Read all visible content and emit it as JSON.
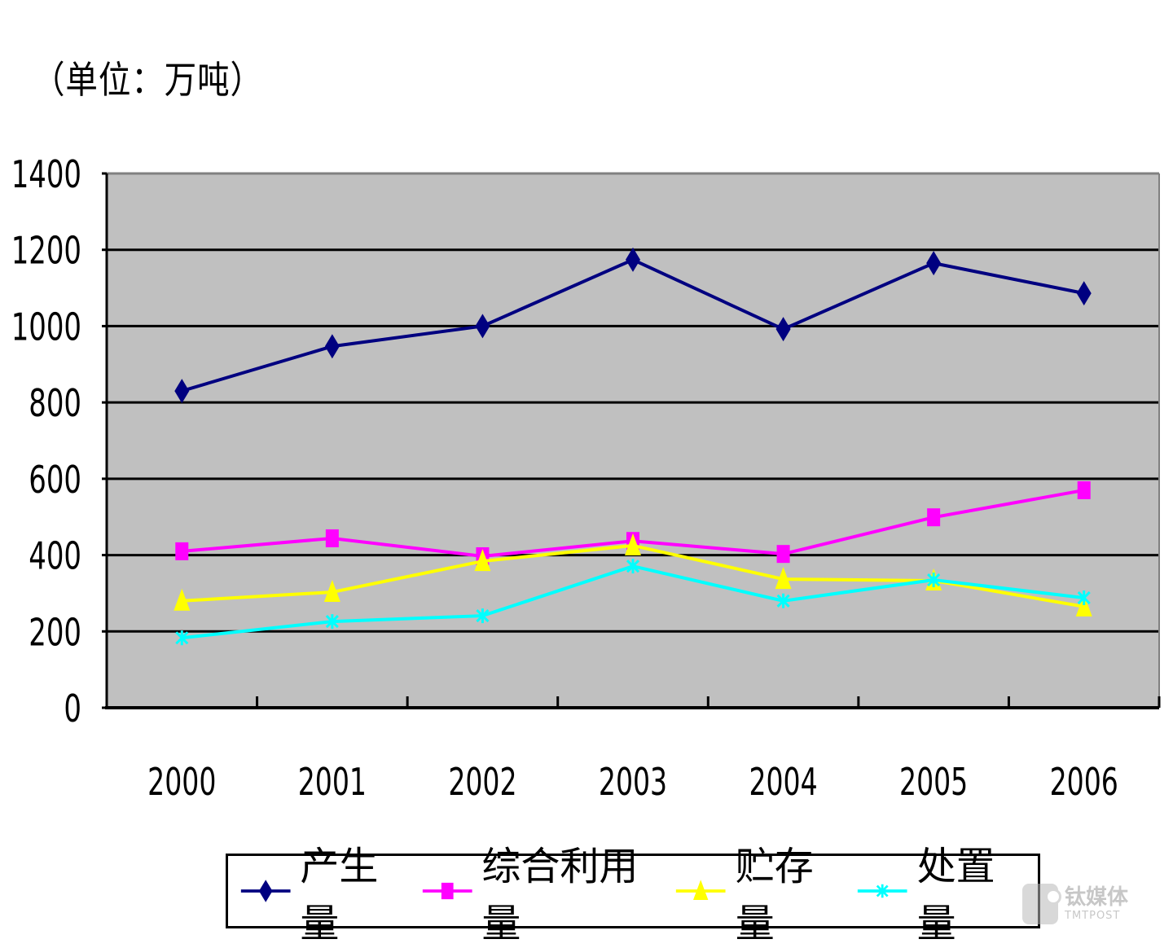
{
  "unit_label": "（单位：万吨）",
  "chart_data": {
    "type": "line",
    "title": "",
    "unit": "万吨",
    "xlabel": "",
    "ylabel": "（单位：万吨）",
    "categories": [
      "2000",
      "2001",
      "2002",
      "2003",
      "2004",
      "2005",
      "2006"
    ],
    "ylim": [
      0,
      1400
    ],
    "yticks": [
      0,
      200,
      400,
      600,
      800,
      1000,
      1200,
      1400
    ],
    "grid": true,
    "legend_position": "bottom",
    "plot_background": "#c0c0c0",
    "series": [
      {
        "name": "产生量",
        "color": "#000080",
        "marker": "diamond",
        "values": [
          830,
          947,
          1000,
          1174,
          992,
          1165,
          1086
        ]
      },
      {
        "name": "综合利用量",
        "color": "#ff00ff",
        "marker": "square",
        "values": [
          410,
          444,
          397,
          437,
          403,
          499,
          570
        ]
      },
      {
        "name": "贮存量",
        "color": "#ffff00",
        "marker": "triangle",
        "values": [
          280,
          303,
          384,
          425,
          337,
          333,
          265
        ]
      },
      {
        "name": "处置量",
        "color": "#00ffff",
        "marker": "x",
        "values": [
          183,
          226,
          241,
          371,
          280,
          335,
          288
        ]
      }
    ]
  },
  "watermark": {
    "cn": "钛媒体",
    "en": "TMTPOST"
  }
}
